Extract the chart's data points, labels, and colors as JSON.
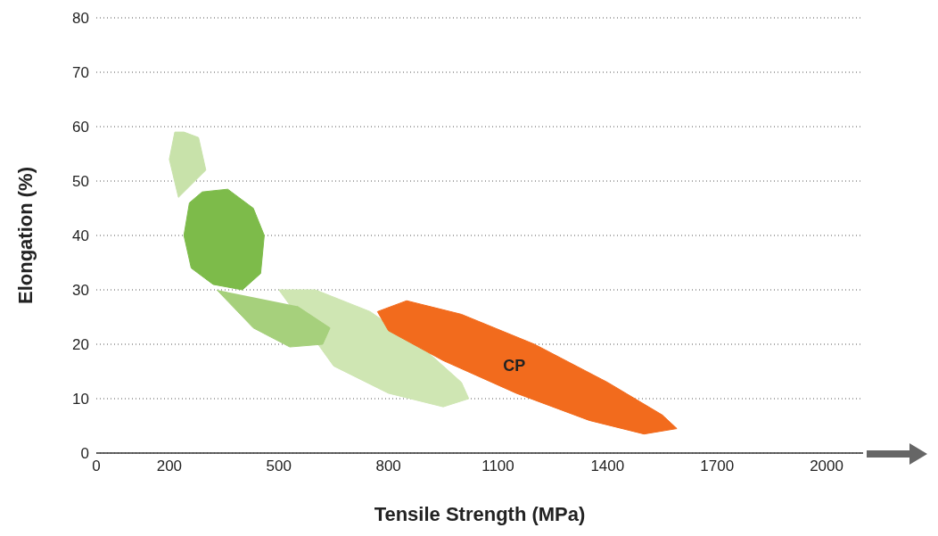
{
  "chart_data": {
    "type": "area",
    "xlabel": "Tensile Strength (MPa)",
    "ylabel": "Elongation (%)",
    "xlim": [
      0,
      2100
    ],
    "xticks": [
      0,
      200,
      500,
      800,
      1100,
      1400,
      1700,
      2000
    ],
    "ylim": [
      0,
      80
    ],
    "yticks": [
      0,
      10,
      20,
      30,
      40,
      50,
      60,
      70,
      80
    ],
    "grid": "y",
    "marker": "none",
    "series": [
      {
        "color": "#cfe6b3",
        "x": [
          500,
          600,
          750,
          900,
          1000,
          1020,
          950,
          800,
          650,
          500
        ],
        "values": [
          30,
          30,
          26,
          19,
          13,
          10,
          8.5,
          11,
          16,
          30
        ]
      },
      {
        "color": "#a6d07c",
        "x": [
          550,
          640,
          620,
          530,
          430,
          330
        ],
        "values": [
          27,
          23,
          20,
          19.5,
          23,
          30
        ]
      },
      {
        "color": "#c8e2aa",
        "x": [
          240,
          280,
          300,
          225,
          200,
          215,
          240
        ],
        "values": [
          59,
          58,
          52,
          47,
          54,
          59,
          59
        ]
      },
      {
        "color": "#7dbb4a",
        "x": [
          290,
          360,
          430,
          460,
          450,
          400,
          320,
          260,
          240,
          255,
          290
        ],
        "values": [
          48,
          48.5,
          45,
          40,
          33,
          30,
          31,
          34,
          40,
          46,
          48
        ]
      },
      {
        "name": "CP",
        "color": "#f26b1d",
        "x": [
          770,
          850,
          1000,
          1200,
          1400,
          1550,
          1590,
          1500,
          1350,
          1150,
          950,
          800,
          770
        ],
        "values": [
          26,
          28,
          25.5,
          20,
          13,
          7,
          4.5,
          3.5,
          6,
          11,
          17,
          22.5,
          26
        ]
      }
    ]
  }
}
